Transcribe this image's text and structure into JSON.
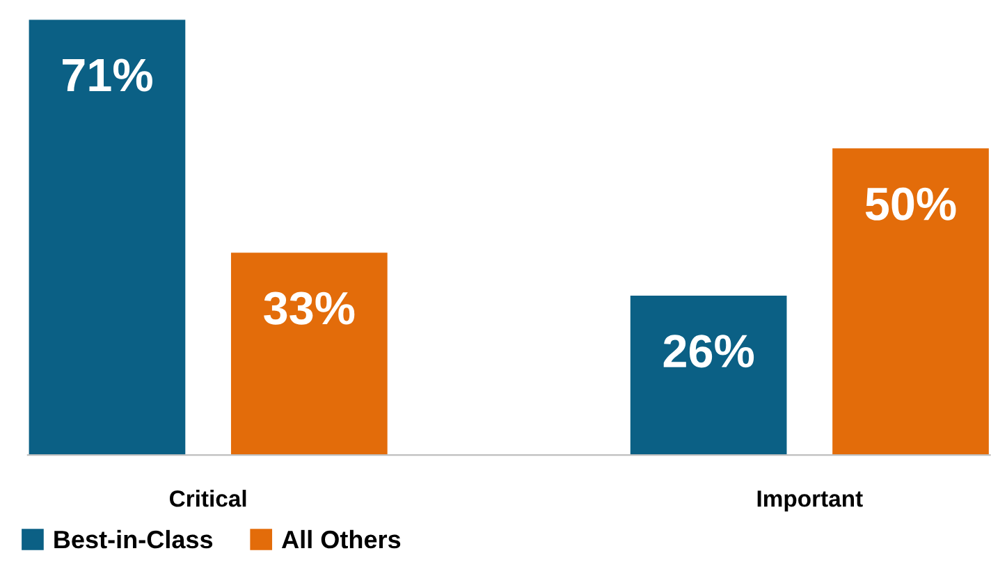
{
  "chart_data": {
    "type": "bar",
    "categories": [
      "Critical",
      "Important"
    ],
    "series": [
      {
        "name": "Best-in-Class",
        "color": "#0b6085",
        "values": [
          71,
          26
        ],
        "value_labels": [
          "71%",
          "26%"
        ]
      },
      {
        "name": "All Others",
        "color": "#e36c0a",
        "values": [
          33,
          50
        ],
        "value_labels": [
          "33%",
          "50%"
        ]
      }
    ],
    "grid": false,
    "legend": "bottom left"
  }
}
